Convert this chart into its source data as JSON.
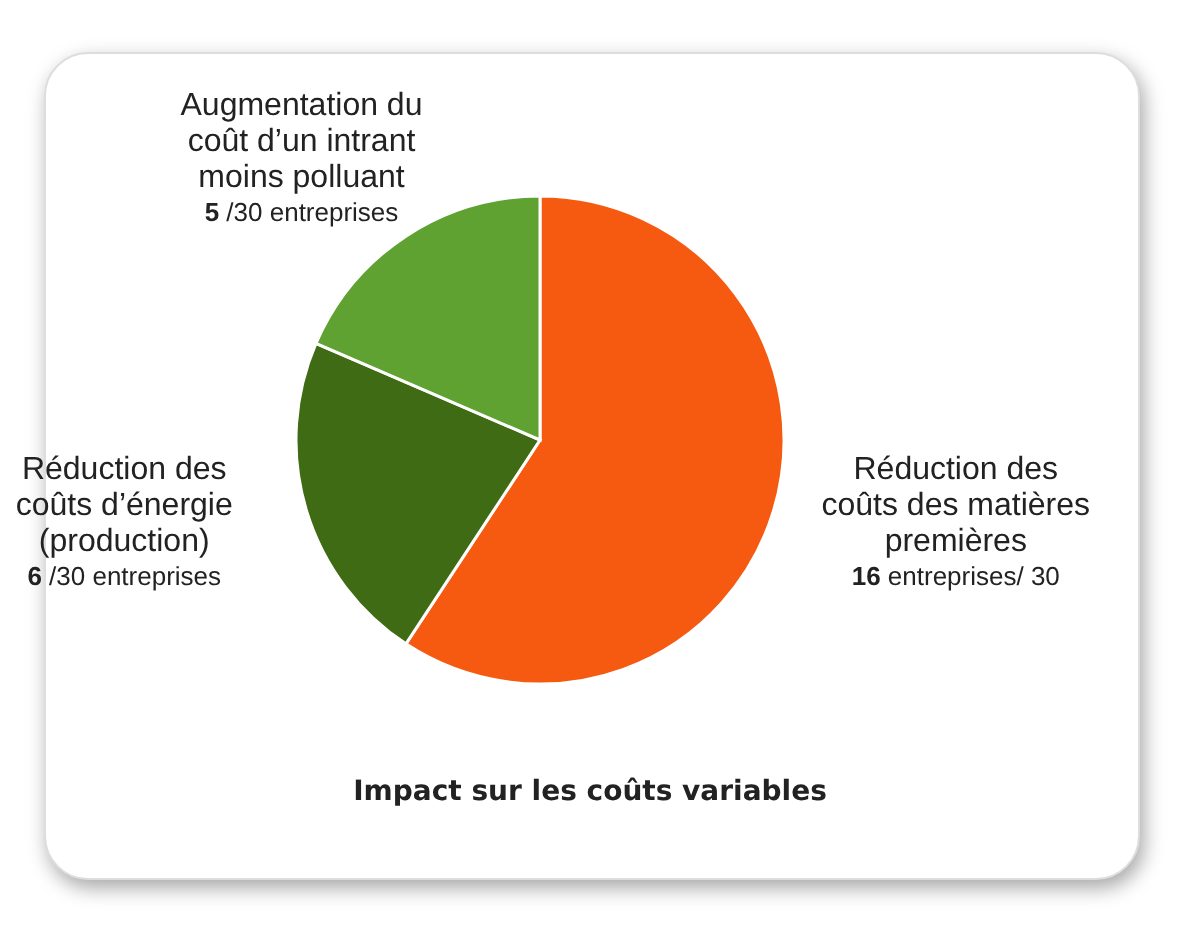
{
  "chart_data": {
    "type": "pie",
    "title": "Impact sur les coûts variables",
    "categories": [
      "Réduction des coûts des matières premières",
      "Réduction des coûts d’énergie (production)",
      "Augmentation du coût d’un intrant moins polluant"
    ],
    "values": [
      16,
      6,
      5
    ],
    "colors": [
      "#f55a10",
      "#3e6b13",
      "#5fa232"
    ],
    "value_labels": [
      "16 entreprises/ 30",
      "6 /30 entreprises",
      "5 /30 entreprises"
    ],
    "legend": false
  }
}
